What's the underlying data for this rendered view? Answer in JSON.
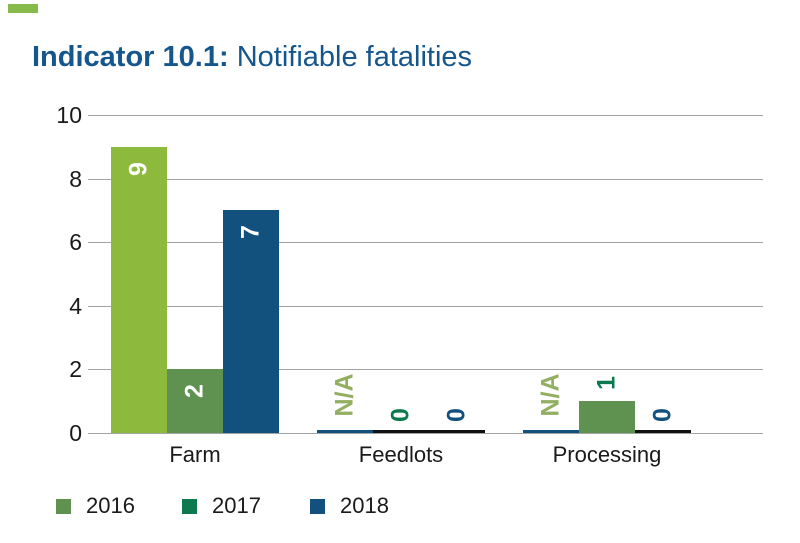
{
  "page": {
    "background": "#ffffff",
    "accent_mark_color": "#86ba4a"
  },
  "title": {
    "bold": "Indicator 10.1:",
    "regular": "Notifiable fatalities",
    "color": "#15568d"
  },
  "chart_data": {
    "type": "bar",
    "title": "Indicator 10.1: Notifiable fatalities",
    "categories": [
      "Farm",
      "Feedlots",
      "Processing"
    ],
    "series": [
      {
        "name": "2016",
        "bar_color": "#8db93c",
        "outside_label_color": "#92af62",
        "values": [
          9,
          null,
          null
        ],
        "labels": [
          "9",
          "N/A",
          "N/A"
        ]
      },
      {
        "name": "2017",
        "bar_color": "#5f9150",
        "outside_label_color": "#0c7a4e",
        "values": [
          2,
          0,
          1
        ],
        "labels": [
          "2",
          "0",
          "1"
        ]
      },
      {
        "name": "2018",
        "bar_color": "#12507e",
        "outside_label_color": "#12507e",
        "values": [
          7,
          0,
          0
        ],
        "labels": [
          "7",
          "0",
          "0"
        ]
      }
    ],
    "xlabel": "",
    "ylabel": "",
    "ylim": [
      0,
      10
    ],
    "yticks": [
      0,
      2,
      4,
      6,
      8,
      10
    ],
    "grid": true,
    "gridline_color": "#a3a3a3",
    "inside_label_color": "#ffffff",
    "value_label_rotation": -90,
    "baseline": {
      "na_segment_color": "#12507e",
      "zero_segment_color": "#111111"
    },
    "legend_position": "bottom",
    "legend": [
      {
        "label": "2016",
        "color": "#5f9150"
      },
      {
        "label": "2017",
        "color": "#0c7a4e"
      },
      {
        "label": "2018",
        "color": "#12507e"
      }
    ]
  }
}
